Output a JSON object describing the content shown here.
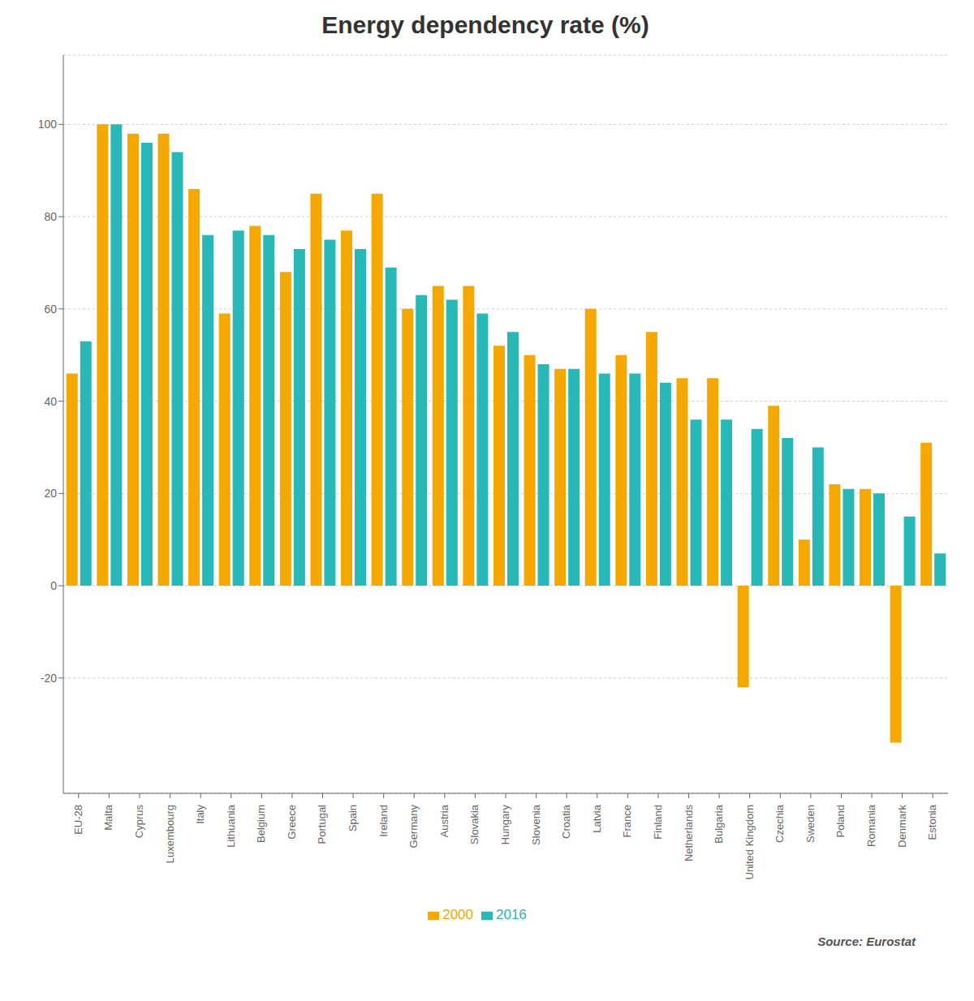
{
  "chart_data": {
    "type": "bar",
    "title": "Energy dependency rate (%)",
    "categories": [
      "EU-28",
      "Malta",
      "Cyprus",
      "Luxembourg",
      "Italy",
      "Lithuania",
      "Belgium",
      "Greece",
      "Portugal",
      "Spain",
      "Ireland",
      "Germany",
      "Austria",
      "Slovakia",
      "Hungary",
      "Slovenia",
      "Croatia",
      "Latvia",
      "France",
      "Finland",
      "Netherlands",
      "Bulgaria",
      "United Kingdom",
      "Czechia",
      "Sweden",
      "Poland",
      "Romania",
      "Denmark",
      "Estonia"
    ],
    "series": [
      {
        "name": "2000",
        "color": "#f5a800",
        "values": [
          46,
          100,
          98,
          98,
          86,
          59,
          78,
          68,
          85,
          77,
          85,
          60,
          65,
          65,
          52,
          50,
          47,
          60,
          50,
          55,
          45,
          45,
          -22,
          39,
          10,
          22,
          21,
          -34,
          31
        ]
      },
      {
        "name": "2016",
        "color": "#29b8b8",
        "values": [
          53,
          100,
          96,
          94,
          76,
          77,
          76,
          73,
          75,
          73,
          69,
          63,
          62,
          59,
          55,
          48,
          47,
          46,
          46,
          44,
          36,
          36,
          34,
          32,
          30,
          21,
          20,
          15,
          7
        ]
      }
    ],
    "ylim": [
      -45,
      115
    ],
    "yticks": [
      -20,
      0,
      20,
      40,
      60,
      80,
      100
    ],
    "grid": true,
    "legend": "bottom",
    "annotations": [
      "Source: Eurostat"
    ]
  }
}
